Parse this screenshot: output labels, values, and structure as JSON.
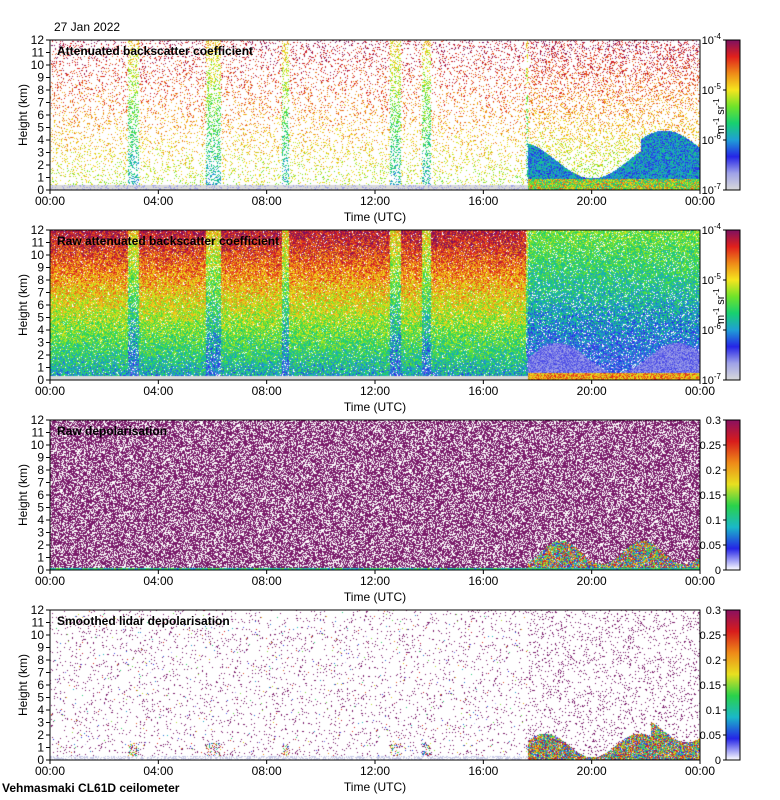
{
  "header": {
    "date": "27 Jan 2022"
  },
  "footer": {
    "instrument": "Vehmasmaki CL61D ceilometer"
  },
  "colors": {
    "scale": [
      "#d9d9d9",
      "#9fa2e8",
      "#2525e6",
      "#1f9ed6",
      "#17d070",
      "#6fe32a",
      "#f5e51e",
      "#ee8a18",
      "#e0201c",
      "#7d1060"
    ],
    "depol_scale": [
      "#ffffff",
      "#2525e6",
      "#1ab8c8",
      "#2ad24a",
      "#e8e020",
      "#ee8a18",
      "#d81c1c",
      "#8a1060"
    ],
    "depol_speckle": "#7a1a6a"
  },
  "chart_data": [
    {
      "type": "heatmap",
      "title": "Attenuated backscatter coefficient",
      "xlabel": "Time (UTC)",
      "ylabel": "Height (km)",
      "x_ticks": [
        "00:00",
        "04:00",
        "08:00",
        "12:00",
        "16:00",
        "20:00",
        "00:00"
      ],
      "y_ticks": [
        "0",
        "1",
        "2",
        "3",
        "4",
        "5",
        "6",
        "7",
        "8",
        "9",
        "10",
        "11",
        "12"
      ],
      "xlim": [
        0,
        24
      ],
      "ylim": [
        0,
        12
      ],
      "colorbar": {
        "scale": "log",
        "ticks": [
          "10",
          "10",
          "10",
          "10"
        ],
        "tick_exp": [
          "-7",
          "-6",
          "-5",
          "-4"
        ],
        "label": "m",
        "label_exp": "-1",
        "label2": "sr",
        "label2_exp": "-1",
        "range": [
          1e-07,
          0.0001
        ]
      },
      "grid": false
    },
    {
      "type": "heatmap",
      "title": "Raw attenuated backscatter coefficient",
      "xlabel": "Time (UTC)",
      "ylabel": "Height (km)",
      "x_ticks": [
        "00:00",
        "04:00",
        "08:00",
        "12:00",
        "16:00",
        "20:00",
        "00:00"
      ],
      "y_ticks": [
        "0",
        "1",
        "2",
        "3",
        "4",
        "5",
        "6",
        "7",
        "8",
        "9",
        "10",
        "11",
        "12"
      ],
      "xlim": [
        0,
        24
      ],
      "ylim": [
        0,
        12
      ],
      "colorbar": {
        "scale": "log",
        "ticks": [
          "10",
          "10",
          "10",
          "10"
        ],
        "tick_exp": [
          "-7",
          "-6",
          "-5",
          "-4"
        ],
        "label": "m",
        "label_exp": "-1",
        "label2": "sr",
        "label2_exp": "-1",
        "range": [
          1e-07,
          0.0001
        ]
      },
      "grid": false
    },
    {
      "type": "heatmap",
      "title": "Raw depolarisation",
      "xlabel": "Time (UTC)",
      "ylabel": "Height (km)",
      "x_ticks": [
        "00:00",
        "04:00",
        "08:00",
        "12:00",
        "16:00",
        "20:00",
        "00:00"
      ],
      "y_ticks": [
        "0",
        "1",
        "2",
        "3",
        "4",
        "5",
        "6",
        "7",
        "8",
        "9",
        "10",
        "11",
        "12"
      ],
      "xlim": [
        0,
        24
      ],
      "ylim": [
        0,
        12
      ],
      "colorbar": {
        "scale": "linear",
        "ticks": [
          "0",
          "0.05",
          "0.1",
          "0.15",
          "0.2",
          "0.25",
          "0.3"
        ],
        "range": [
          0,
          0.3
        ]
      },
      "grid": false
    },
    {
      "type": "heatmap",
      "title": "Smoothed lidar depolarisation",
      "xlabel": "Time (UTC)",
      "ylabel": "Height (km)",
      "x_ticks": [
        "00:00",
        "04:00",
        "08:00",
        "12:00",
        "16:00",
        "20:00",
        "00:00"
      ],
      "y_ticks": [
        "0",
        "1",
        "2",
        "3",
        "4",
        "5",
        "6",
        "7",
        "8",
        "9",
        "10",
        "11",
        "12"
      ],
      "xlim": [
        0,
        24
      ],
      "ylim": [
        0,
        12
      ],
      "colorbar": {
        "scale": "linear",
        "ticks": [
          "0",
          "0.05",
          "0.1",
          "0.15",
          "0.2",
          "0.25",
          "0.3"
        ],
        "range": [
          0,
          0.3
        ]
      },
      "grid": false
    }
  ]
}
